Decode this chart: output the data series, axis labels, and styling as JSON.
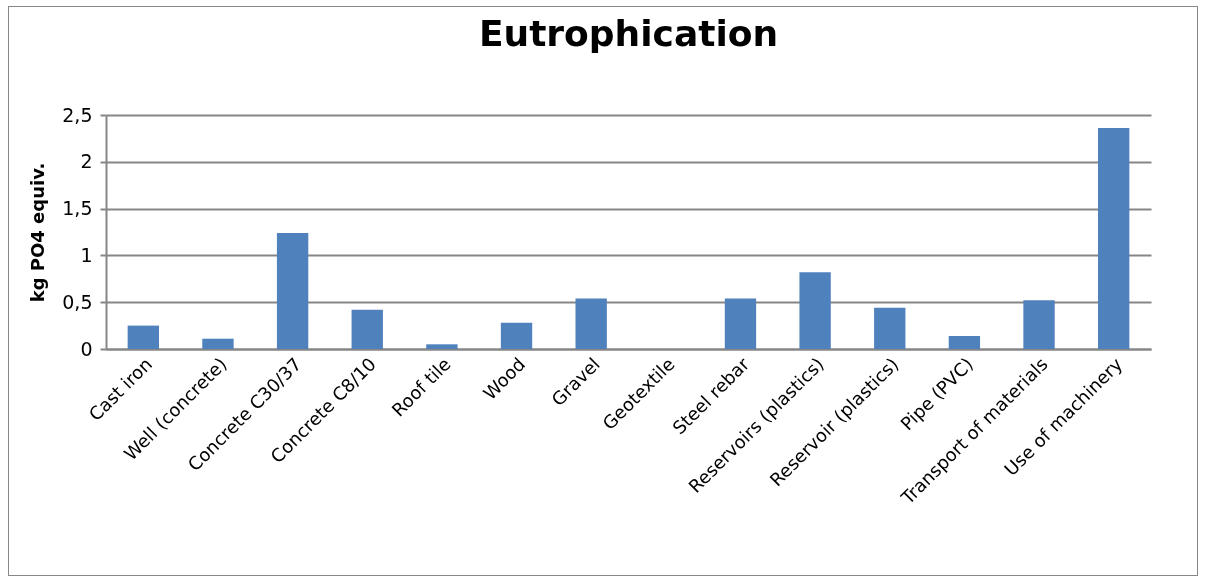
{
  "chart_data": {
    "type": "bar",
    "title": "Eutrophication",
    "ylabel": "kg PO4 equiv.",
    "categories": [
      "Cast iron",
      "Well (concrete)",
      "Concrete C30/37",
      "Concrete C8/10",
      "Roof tile",
      "Wood",
      "Gravel",
      "Geotextile",
      "Steel rebar",
      "Reservoirs (plastics)",
      "Reservoir (plastics)",
      "Pipe (PVC)",
      "Transport of materials",
      "Use of machinery"
    ],
    "values": [
      0.25,
      0.11,
      1.24,
      0.42,
      0.05,
      0.28,
      0.54,
      null,
      0.54,
      0.82,
      0.44,
      0.14,
      0.52,
      2.36
    ],
    "color": "#4f81bd",
    "ylim": [
      0,
      2.5
    ],
    "yticks": [
      0,
      {
        "value": 0.5,
        "label": "0,5"
      },
      1,
      {
        "value": 1.5,
        "label": "1,5"
      },
      2,
      {
        "value": 2.5,
        "label": "2,5"
      }
    ],
    "grid": "y"
  }
}
